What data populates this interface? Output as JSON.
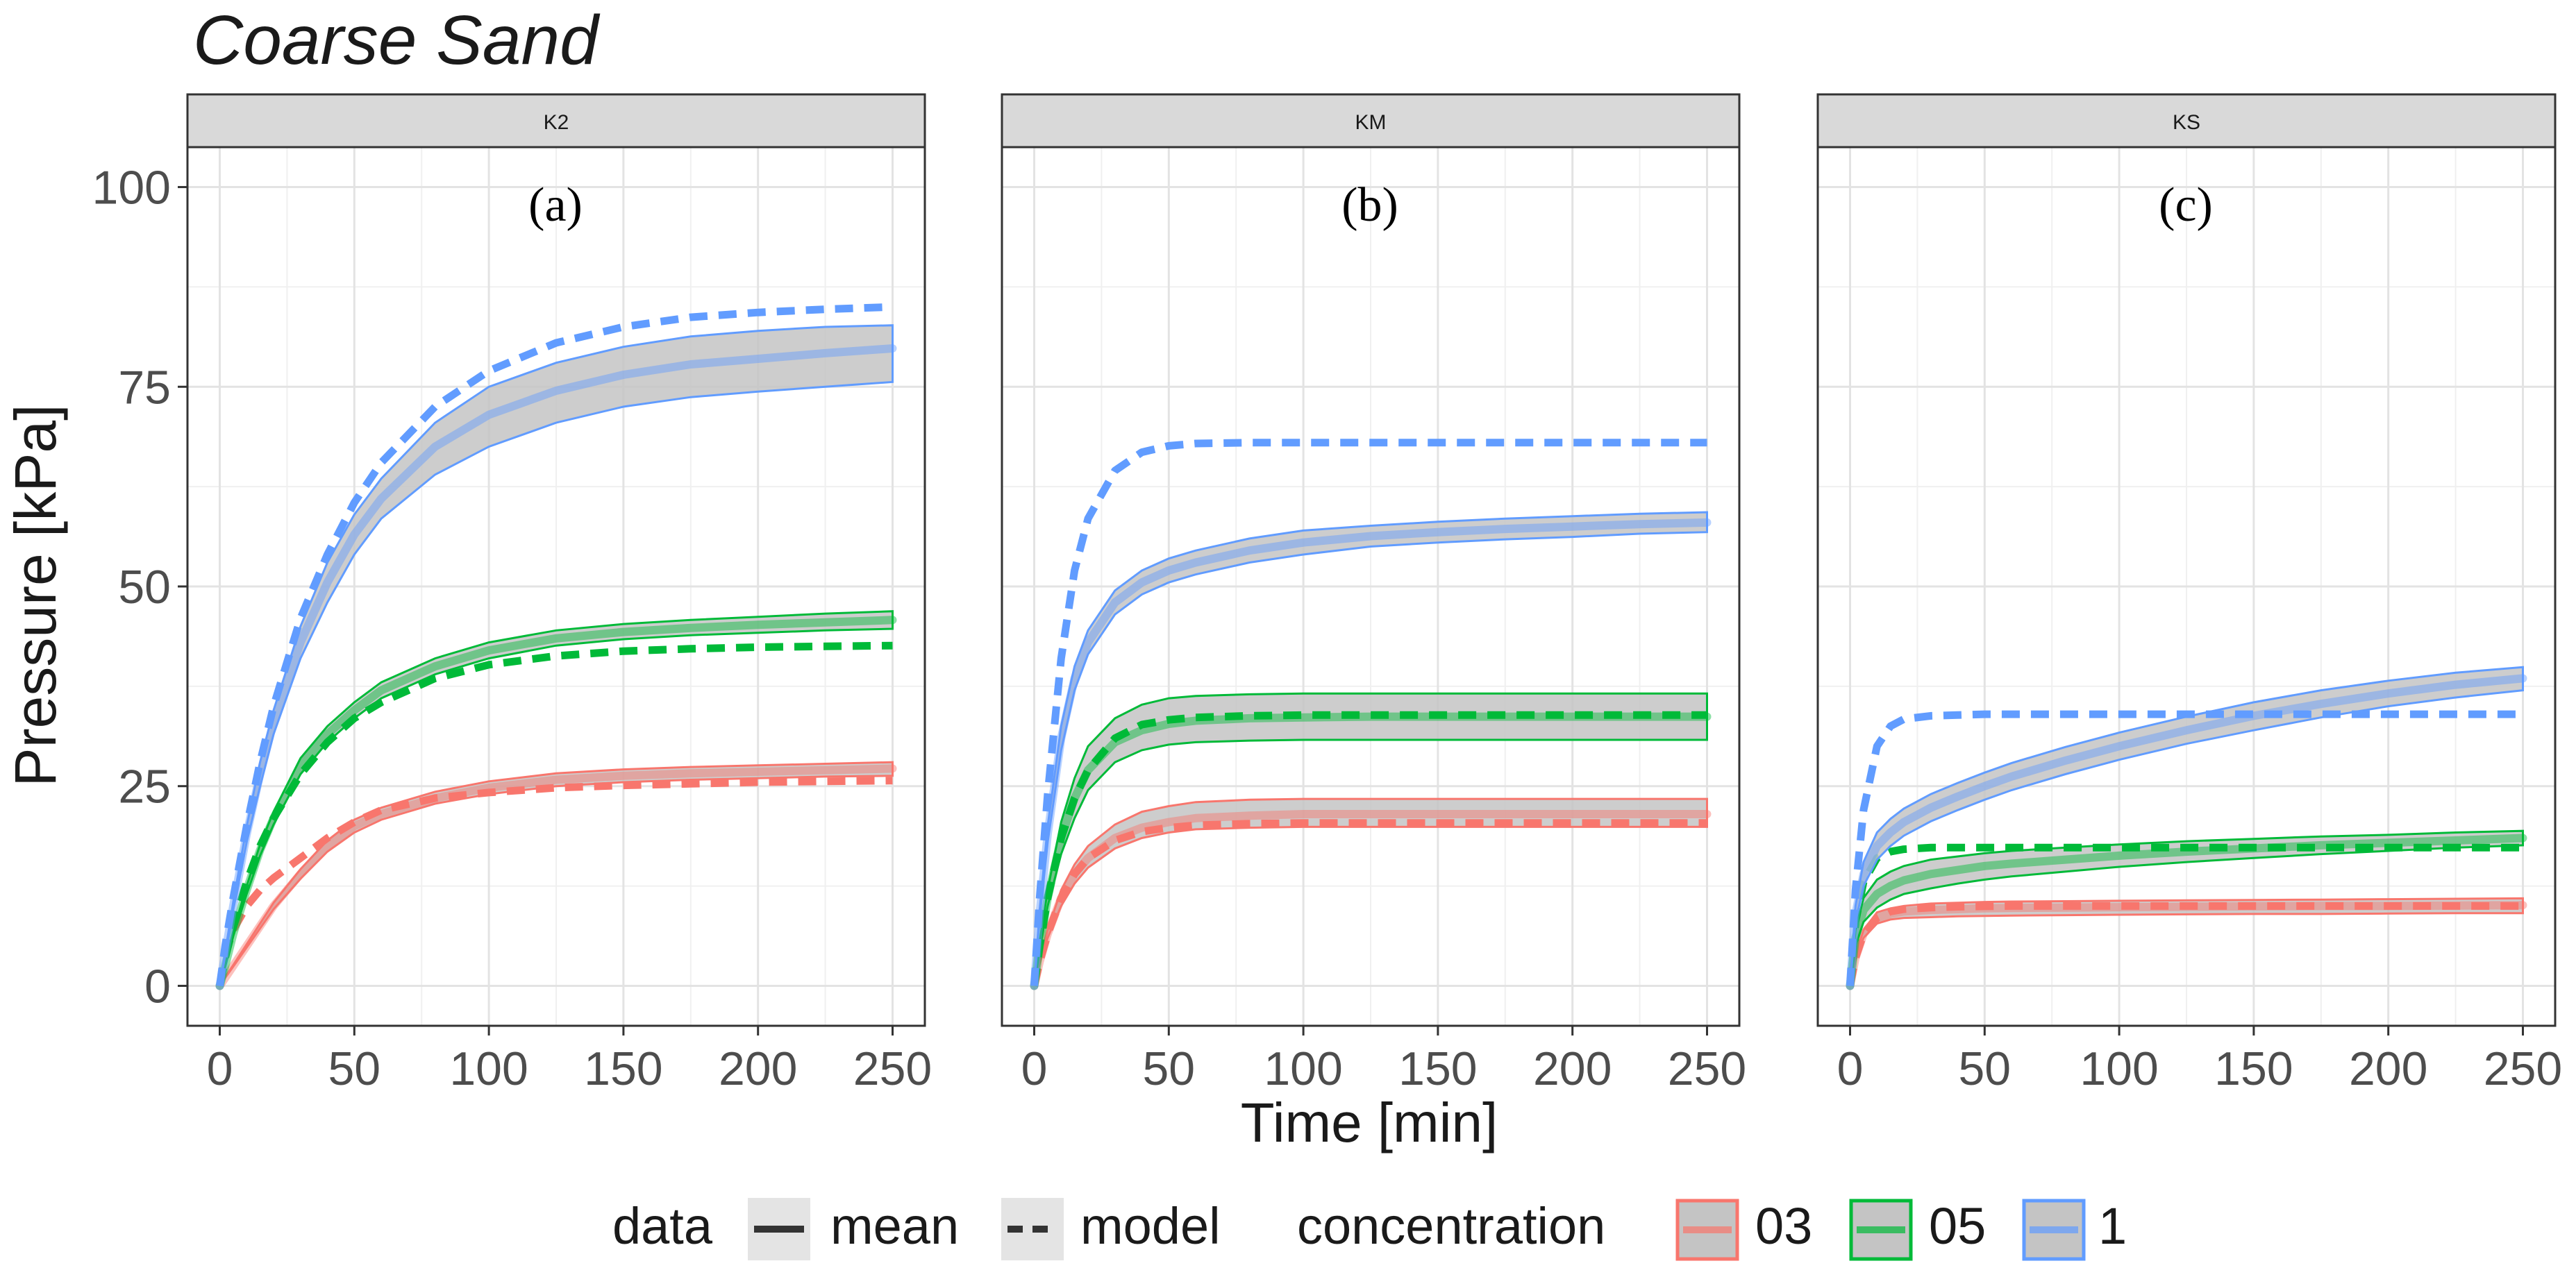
{
  "chart_data": {
    "type": "line",
    "title": "Coarse Sand",
    "xlabel": "Time [min]",
    "ylabel": "Pressure [kPa]",
    "xlim": [
      -12,
      262
    ],
    "ylim": [
      -5,
      105
    ],
    "x_ticks": [
      0,
      50,
      100,
      150,
      200,
      250
    ],
    "y_ticks": [
      0,
      25,
      50,
      75,
      100
    ],
    "x_tick_labels": [
      "0",
      "50",
      "100",
      "150",
      "200",
      "250"
    ],
    "y_tick_labels": [
      "0",
      "25",
      "50",
      "75",
      "100"
    ],
    "legend": {
      "position": "bottom",
      "data_title": "data",
      "data_items": [
        "mean",
        "model"
      ],
      "concentration_title": "concentration",
      "concentration_items": [
        "03",
        "05",
        "1"
      ]
    },
    "colors": {
      "03": "#F8766D",
      "05": "#00BA38",
      "1": "#619CFF",
      "band_fill": "#c4c4c4",
      "mean_line": "#a8a8a8",
      "strip_fill": "#d9d9d9"
    },
    "x": [
      0,
      2,
      5,
      10,
      15,
      20,
      30,
      40,
      50,
      60,
      80,
      100,
      125,
      150,
      175,
      200,
      225,
      250
    ],
    "panels": [
      {
        "strip": "K2",
        "label": "(a)",
        "series": [
          {
            "name": "03",
            "mean": [
              0,
              1,
              2.5,
              5,
              7.5,
              10,
              14,
              17.5,
              20,
              21.5,
              23.5,
              24.8,
              25.8,
              26.3,
              26.6,
              26.8,
              27,
              27.2
            ],
            "lower": [
              0,
              1,
              2.4,
              4.8,
              7.2,
              9.6,
              13.4,
              16.8,
              19.2,
              20.8,
              22.8,
              24,
              25,
              25.5,
              25.8,
              26,
              26.2,
              26.3
            ],
            "upper": [
              0,
              1.1,
              2.6,
              5.2,
              7.8,
              10.4,
              14.6,
              18.2,
              20.8,
              22.3,
              24.3,
              25.6,
              26.6,
              27.1,
              27.4,
              27.6,
              27.8,
              28
            ],
            "model": [
              0,
              4,
              7,
              10,
              12,
              13.5,
              16,
              18.5,
              20.5,
              22,
              23.5,
              24.2,
              24.8,
              25.1,
              25.3,
              25.5,
              25.6,
              25.7
            ]
          },
          {
            "name": "05",
            "mean": [
              0,
              2.5,
              6.5,
              12,
              17,
              21,
              27.5,
              31.5,
              34.5,
              37,
              40,
              42,
              43.5,
              44.3,
              44.8,
              45.2,
              45.5,
              45.8
            ],
            "lower": [
              0,
              2.4,
              6.2,
              11.5,
              16.3,
              20.2,
              26.5,
              30.5,
              33.5,
              36,
              39,
              41,
              42.6,
              43.4,
              43.9,
              44.2,
              44.5,
              44.7
            ],
            "upper": [
              0,
              2.6,
              6.8,
              12.5,
              17.7,
              21.8,
              28.5,
              32.5,
              35.5,
              38,
              41,
              43,
              44.5,
              45.3,
              45.8,
              46.2,
              46.6,
              46.9
            ],
            "model": [
              0,
              3.5,
              7.5,
              13,
              17.5,
              21,
              26.5,
              30.5,
              33.5,
              35.5,
              38.5,
              40.2,
              41.3,
              41.9,
              42.2,
              42.4,
              42.5,
              42.6
            ]
          },
          {
            "name": "1",
            "mean": [
              0,
              4,
              10,
              19,
              26.5,
              33,
              43,
              50.5,
              56.5,
              61,
              67.5,
              71.5,
              74.5,
              76.5,
              77.8,
              78.5,
              79.2,
              79.8
            ],
            "lower": [
              0,
              3.8,
              9.5,
              18,
              25,
              31.5,
              41,
              48,
              54,
              58.5,
              64,
              67.5,
              70.5,
              72.5,
              73.7,
              74.4,
              75,
              75.6
            ],
            "upper": [
              0,
              4.2,
              10.5,
              20,
              28,
              34.5,
              45,
              53,
              59,
              63.5,
              70.5,
              75,
              78,
              80,
              81.3,
              82,
              82.5,
              82.7
            ],
            "model": [
              0,
              5,
              11,
              20,
              28,
              35,
              46,
              54,
              60.5,
              65.5,
              72.5,
              77,
              80.5,
              82.5,
              83.7,
              84.3,
              84.7,
              85
            ]
          }
        ]
      },
      {
        "strip": "KM",
        "label": "(b)",
        "series": [
          {
            "name": "03",
            "mean": [
              0,
              3,
              6.5,
              11,
              14,
              16,
              18.5,
              19.8,
              20.5,
              21,
              21.3,
              21.5,
              21.5,
              21.5,
              21.5,
              21.5,
              21.5,
              21.5
            ],
            "lower": [
              0,
              2.8,
              6,
              10,
              12.8,
              14.8,
              17.2,
              18.5,
              19.2,
              19.6,
              19.8,
              19.9,
              19.9,
              19.9,
              19.9,
              19.9,
              19.9,
              19.9
            ],
            "upper": [
              0,
              3.2,
              7,
              12,
              15.2,
              17.5,
              20.2,
              21.8,
              22.5,
              23,
              23.3,
              23.4,
              23.4,
              23.4,
              23.4,
              23.4,
              23.4,
              23.4
            ],
            "model": [
              0,
              3,
              6.5,
              11,
              14,
              16,
              18.2,
              19.3,
              19.8,
              20.1,
              20.3,
              20.4,
              20.4,
              20.4,
              20.4,
              20.4,
              20.4,
              20.4
            ]
          },
          {
            "name": "05",
            "mean": [
              0,
              5,
              11,
              18.5,
              23.5,
              27,
              30.5,
              32,
              32.8,
              33.2,
              33.5,
              33.6,
              33.7,
              33.7,
              33.7,
              33.7,
              33.7,
              33.7
            ],
            "lower": [
              0,
              4.5,
              10,
              16.5,
              21,
              24.5,
              28,
              29.5,
              30.2,
              30.5,
              30.7,
              30.8,
              30.8,
              30.8,
              30.8,
              30.8,
              30.8,
              30.8
            ],
            "upper": [
              0,
              5.5,
              12,
              20.5,
              26,
              30,
              33.5,
              35.2,
              36,
              36.3,
              36.5,
              36.6,
              36.6,
              36.6,
              36.6,
              36.6,
              36.6,
              36.6
            ],
            "model": [
              0,
              5,
              11,
              18.5,
              23.5,
              27,
              31,
              32.7,
              33.3,
              33.6,
              33.8,
              33.9,
              33.9,
              33.9,
              33.9,
              33.9,
              33.9,
              33.9
            ]
          },
          {
            "name": "1",
            "mean": [
              0,
              9,
              19,
              31,
              38.5,
              43,
              48,
              50.5,
              52,
              53,
              54.5,
              55.5,
              56.3,
              56.8,
              57.2,
              57.5,
              57.8,
              58
            ],
            "lower": [
              0,
              8.5,
              18,
              29.5,
              37,
              41.5,
              46.5,
              49,
              50.5,
              51.5,
              53,
              54,
              55,
              55.5,
              55.9,
              56.2,
              56.6,
              56.8
            ],
            "upper": [
              0,
              9.5,
              20,
              32.5,
              40,
              44.5,
              49.5,
              52,
              53.5,
              54.5,
              56,
              57,
              57.6,
              58.1,
              58.5,
              58.8,
              59.1,
              59.3
            ],
            "model": [
              0,
              11,
              24,
              41,
              52,
              58.5,
              64.5,
              66.8,
              67.6,
              67.9,
              68,
              68,
              68,
              68,
              68,
              68,
              68,
              68
            ]
          }
        ]
      },
      {
        "strip": "KS",
        "label": "(c)",
        "series": [
          {
            "name": "03",
            "mean": [
              0,
              3.5,
              6.5,
              8.5,
              9,
              9.3,
              9.5,
              9.6,
              9.7,
              9.75,
              9.8,
              9.85,
              9.9,
              9.95,
              10,
              10,
              10.05,
              10.1
            ],
            "lower": [
              0,
              3.2,
              6,
              7.8,
              8.3,
              8.5,
              8.6,
              8.7,
              8.75,
              8.8,
              8.85,
              8.9,
              8.95,
              9,
              9,
              9.05,
              9.1,
              9.1
            ],
            "upper": [
              0,
              3.8,
              7,
              9.2,
              9.7,
              10,
              10.3,
              10.4,
              10.5,
              10.55,
              10.6,
              10.65,
              10.7,
              10.75,
              10.8,
              10.85,
              10.9,
              10.95
            ],
            "model": [
              0,
              3.5,
              6.5,
              8.5,
              9.3,
              9.6,
              9.8,
              9.9,
              9.95,
              10,
              10,
              10,
              10,
              10,
              10,
              10,
              10,
              10
            ]
          },
          {
            "name": "05",
            "mean": [
              0,
              6,
              9.5,
              11.5,
              12.5,
              13.2,
              14,
              14.5,
              15,
              15.3,
              15.8,
              16.3,
              16.8,
              17.2,
              17.6,
              17.9,
              18.2,
              18.5
            ],
            "lower": [
              0,
              5,
              8,
              9.8,
              10.8,
              11.5,
              12.2,
              12.8,
              13.3,
              13.7,
              14.3,
              14.9,
              15.5,
              16,
              16.5,
              16.9,
              17.3,
              17.6
            ],
            "upper": [
              0,
              7,
              11,
              13.3,
              14.3,
              15,
              15.8,
              16.2,
              16.6,
              16.9,
              17.3,
              17.7,
              18.1,
              18.4,
              18.7,
              18.9,
              19.2,
              19.4
            ],
            "model": [
              0,
              8,
              13,
              16,
              16.8,
              17.1,
              17.3,
              17.3,
              17.3,
              17.3,
              17.3,
              17.3,
              17.3,
              17.3,
              17.3,
              17.3,
              17.3,
              17.3
            ]
          },
          {
            "name": "1",
            "mean": [
              0,
              9,
              14,
              17.5,
              19.2,
              20.5,
              22.3,
              23.7,
              25,
              26.2,
              28.2,
              30,
              32,
              33.8,
              35.3,
              36.6,
              37.7,
              38.5
            ],
            "lower": [
              0,
              8,
              12.5,
              15.8,
              17.5,
              18.8,
              20.6,
              22,
              23.3,
              24.5,
              26.5,
              28.3,
              30.3,
              32,
              33.6,
              35,
              36.1,
              37
            ],
            "upper": [
              0,
              10,
              15.5,
              19.2,
              20.9,
              22.2,
              24,
              25.4,
              26.7,
              27.9,
              29.9,
              31.7,
              33.7,
              35.5,
              37,
              38.2,
              39.2,
              39.9
            ],
            "model": [
              0,
              12,
              22,
              30,
              32.5,
              33.4,
              33.8,
              33.9,
              34,
              34,
              34,
              34,
              34,
              34,
              34,
              34,
              34,
              34
            ]
          }
        ]
      }
    ]
  }
}
